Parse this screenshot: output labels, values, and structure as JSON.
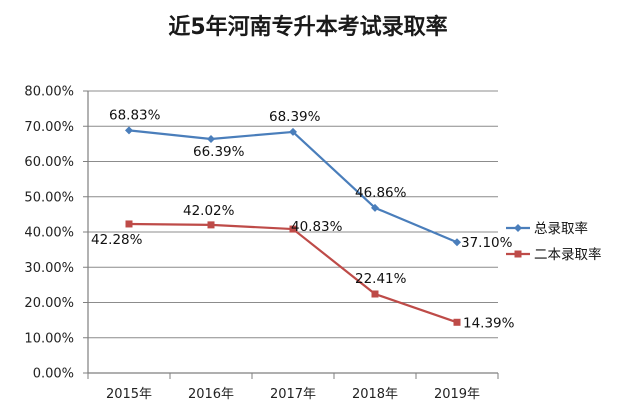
{
  "chart_data": {
    "type": "line",
    "title": "近5年河南专升本考试录取率",
    "categories": [
      "2015年",
      "2016年",
      "2017年",
      "2018年",
      "2019年"
    ],
    "ylim": [
      0,
      80
    ],
    "yticks": [
      "0.00%",
      "10.00%",
      "20.00%",
      "30.00%",
      "40.00%",
      "50.00%",
      "60.00%",
      "70.00%",
      "80.00%"
    ],
    "grid": "horizontal",
    "legend_position": "right",
    "series": [
      {
        "name": "总录取率",
        "color": "#4a7ebb",
        "marker": "diamond",
        "values": [
          68.83,
          66.39,
          68.39,
          46.86,
          37.1
        ],
        "labels": [
          "68.83%",
          "66.39%",
          "68.39%",
          "46.86%",
          "37.10%"
        ]
      },
      {
        "name": "二本录取率",
        "color": "#be4b48",
        "marker": "square",
        "values": [
          42.28,
          42.02,
          40.83,
          22.41,
          14.39
        ],
        "labels": [
          "42.28%",
          "42.02%",
          "40.83%",
          "22.41%",
          "14.39%"
        ]
      }
    ]
  }
}
